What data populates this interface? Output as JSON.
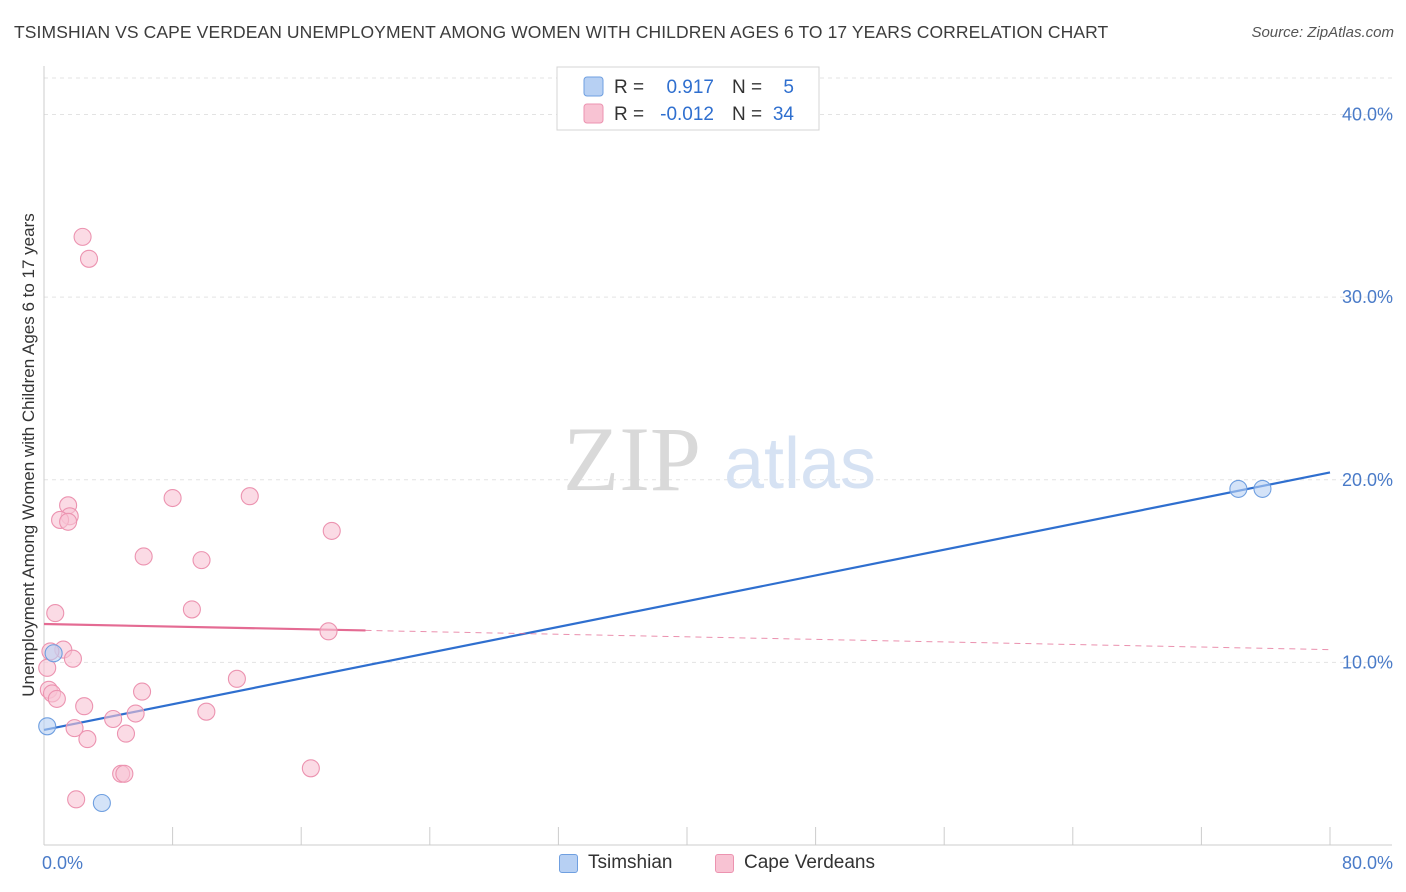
{
  "title": "TSIMSHIAN VS CAPE VERDEAN UNEMPLOYMENT AMONG WOMEN WITH CHILDREN AGES 6 TO 17 YEARS CORRELATION CHART",
  "source": "Source: ZipAtlas.com",
  "watermark": {
    "zip": "ZIP",
    "atlas": "atlas"
  },
  "colors": {
    "blue_fill": "#b7d0f3",
    "blue_stroke": "#6f9fe0",
    "blue_line": "#2f6fcf",
    "pink_fill": "#f8c3d3",
    "pink_stroke": "#ec93b0",
    "pink_line": "#e46b93",
    "tick_text": "#4a7bc8"
  },
  "legend": {
    "rows": [
      {
        "r_label": "R =",
        "r_value": "0.917",
        "n_label": "N =",
        "n_value": "5"
      },
      {
        "r_label": "R =",
        "r_value": "-0.012",
        "n_label": "N =",
        "n_value": "34"
      }
    ]
  },
  "bottom_legend": [
    "Tsimshian",
    "Cape Verdeans"
  ],
  "chart_data": {
    "type": "scatter",
    "title": "TSIMSHIAN VS CAPE VERDEAN UNEMPLOYMENT AMONG WOMEN WITH CHILDREN AGES 6 TO 17 YEARS CORRELATION CHART",
    "xlabel": "",
    "ylabel": "Unemployment Among Women with Children Ages 6 to 17 years",
    "xlim": [
      0,
      80
    ],
    "ylim": [
      0,
      42
    ],
    "x_tick_labels": [
      "0.0%",
      "80.0%"
    ],
    "y_ticks": [
      10,
      20,
      30,
      40
    ],
    "y_tick_labels": [
      "10.0%",
      "20.0%",
      "30.0%",
      "40.0%"
    ],
    "grid": true,
    "legend_position": "top-center",
    "series": [
      {
        "name": "Tsimshian",
        "r": 0.917,
        "n": 5,
        "points": [
          [
            0.2,
            6.5
          ],
          [
            0.6,
            10.5
          ],
          [
            3.6,
            2.3
          ],
          [
            74.3,
            19.5
          ],
          [
            75.8,
            19.5
          ]
        ],
        "trend": {
          "x": [
            0,
            80
          ],
          "y": [
            6.3,
            20.4
          ],
          "dashed_from": null
        }
      },
      {
        "name": "Cape Verdeans",
        "r": -0.012,
        "n": 34,
        "points": [
          [
            2.4,
            33.3
          ],
          [
            2.8,
            32.1
          ],
          [
            1.5,
            18.6
          ],
          [
            1.6,
            18.0
          ],
          [
            1.0,
            17.8
          ],
          [
            1.5,
            17.7
          ],
          [
            8.0,
            19.0
          ],
          [
            12.8,
            19.1
          ],
          [
            17.9,
            17.2
          ],
          [
            6.2,
            15.8
          ],
          [
            9.8,
            15.6
          ],
          [
            0.7,
            12.7
          ],
          [
            9.2,
            12.9
          ],
          [
            17.7,
            11.7
          ],
          [
            1.2,
            10.7
          ],
          [
            1.8,
            10.2
          ],
          [
            0.4,
            10.6
          ],
          [
            0.2,
            9.7
          ],
          [
            0.3,
            8.5
          ],
          [
            0.5,
            8.3
          ],
          [
            0.8,
            8.0
          ],
          [
            6.1,
            8.4
          ],
          [
            12.0,
            9.1
          ],
          [
            2.5,
            7.6
          ],
          [
            5.7,
            7.2
          ],
          [
            10.1,
            7.3
          ],
          [
            4.3,
            6.9
          ],
          [
            1.9,
            6.4
          ],
          [
            5.1,
            6.1
          ],
          [
            2.7,
            5.8
          ],
          [
            4.8,
            3.9
          ],
          [
            5.0,
            3.9
          ],
          [
            16.6,
            4.2
          ],
          [
            2.0,
            2.5
          ]
        ],
        "trend": {
          "x": [
            0,
            80
          ],
          "y": [
            12.1,
            10.7
          ],
          "dashed_from": 20
        }
      }
    ]
  }
}
